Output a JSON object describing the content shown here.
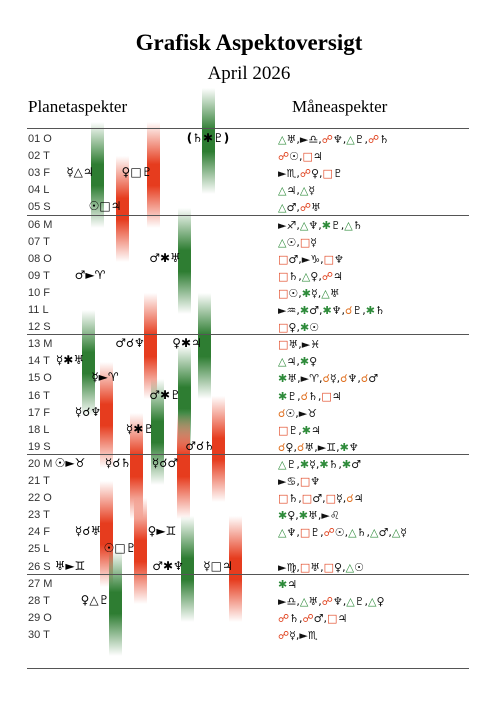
{
  "header": {
    "title": "Grafisk Aspektoversigt",
    "subtitle": "April 2026",
    "left_heading": "Planetaspekter",
    "right_heading": "Måneaspekter"
  },
  "rows": [
    {
      "day": "01 O",
      "planet": [
        "(♄✱♇)"
      ],
      "moon": "△♅,►♎,☍♆,△♇,☍♄"
    },
    {
      "day": "02 T",
      "planet": [],
      "moon": "☍☉,□♃"
    },
    {
      "day": "03 F",
      "planet": [
        "☿△♃",
        "♀□♇"
      ],
      "moon": "►♏,☍♀,□♇"
    },
    {
      "day": "04 L",
      "planet": [],
      "moon": "△♃,△☿"
    },
    {
      "day": "05 S",
      "planet": [
        "☉□♃"
      ],
      "moon": "△♂,☍♅"
    },
    {
      "day": "06 M",
      "planet": [],
      "moon": "►♐,△♆,✱♇,△♄"
    },
    {
      "day": "07 T",
      "planet": [],
      "moon": "△☉,□☿"
    },
    {
      "day": "08 O",
      "planet": [
        "♂✱♅"
      ],
      "moon": "□♂,►♑,□♆"
    },
    {
      "day": "09 T",
      "planet": [
        "♂►♈"
      ],
      "moon": "□♄,△♀,☍♃"
    },
    {
      "day": "10 F",
      "planet": [],
      "moon": "□☉,✱☿,△♅"
    },
    {
      "day": "11 L",
      "planet": [],
      "moon": "►♒,✱♂,✱♆,☌♇,✱♄"
    },
    {
      "day": "12 S",
      "planet": [],
      "moon": "□♀,✱☉"
    },
    {
      "day": "13 M",
      "planet": [
        "♂☌♆",
        "♀✱♃"
      ],
      "moon": "□♅,►♓"
    },
    {
      "day": "14 T",
      "planet": [
        "☿✱♅"
      ],
      "moon": "△♃,✱♀"
    },
    {
      "day": "15 O",
      "planet": [
        "☿►♈"
      ],
      "moon": "✱♅,►♈,☌☿,☌♆,☌♂"
    },
    {
      "day": "16 T",
      "planet": [
        "♂✱♇"
      ],
      "moon": "✱♇,☌♄,□♃"
    },
    {
      "day": "17 F",
      "planet": [
        "☿☌♆"
      ],
      "moon": "☌☉,►♉"
    },
    {
      "day": "18 L",
      "planet": [
        "☿✱♇"
      ],
      "moon": "□♇,✱♃"
    },
    {
      "day": "19 S",
      "planet": [
        "♂☌♄"
      ],
      "moon": "☌♀,☌♅,►♊,✱♆"
    },
    {
      "day": "20 M",
      "planet": [
        "☉►♉",
        "☿☌♄",
        "☿☌♂"
      ],
      "moon": "△♇,✱☿,✱♄,✱♂"
    },
    {
      "day": "21 T",
      "planet": [],
      "moon": "►♋,□♆"
    },
    {
      "day": "22 O",
      "planet": [],
      "moon": "□♄,□♂,□☿,☌♃"
    },
    {
      "day": "23 T",
      "planet": [],
      "moon": "✱♀,✱♅,►♌"
    },
    {
      "day": "24 F",
      "planet": [
        "☿☌♅",
        "♀►♊"
      ],
      "moon": "△♆,□♇,☍☉,△♄,△♂,△☿"
    },
    {
      "day": "25 L",
      "planet": [
        "☉□♇"
      ],
      "moon": ""
    },
    {
      "day": "26 S",
      "planet": [
        "♅►♊",
        "♂✱♆",
        "☿□♃"
      ],
      "moon": "►♍,□♅,□♀,△☉"
    },
    {
      "day": "27 M",
      "planet": [],
      "moon": "✱♃"
    },
    {
      "day": "28 T",
      "planet": [
        "♀△♇"
      ],
      "moon": "►♎,△♅,☍♆,△♇,△♀"
    },
    {
      "day": "29 O",
      "planet": [],
      "moon": "☍♄,☍♂,□♃"
    },
    {
      "day": "30 T",
      "planet": [],
      "moon": "☍☿,►♏"
    }
  ]
}
